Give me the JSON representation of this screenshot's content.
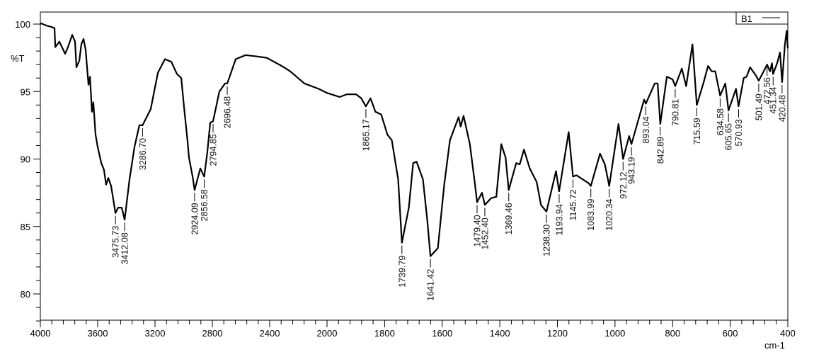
{
  "chart_data": {
    "type": "line",
    "title": "",
    "xlabel": "cm-1",
    "ylabel": "%T",
    "xlim": [
      4000,
      400
    ],
    "x_scale_break": 2000,
    "ylim": [
      78,
      100.9
    ],
    "x_ticks": [
      "4000",
      "3600",
      "3200",
      "2800",
      "2400",
      "2000",
      "1800",
      "1600",
      "1400",
      "1200",
      "1000",
      "800",
      "600",
      "400"
    ],
    "y_ticks": [
      "100",
      "95",
      "90",
      "85",
      "80"
    ],
    "grid": false,
    "legend": {
      "position": "top-right",
      "entries": [
        "B1"
      ]
    },
    "series": [
      {
        "name": "B1",
        "color": "#000000",
        "points": [
          [
            4000,
            100.0
          ],
          [
            3995,
            100.05
          ],
          [
            3960,
            99.9
          ],
          [
            3926,
            99.8
          ],
          [
            3901,
            99.7
          ],
          [
            3896,
            98.3
          ],
          [
            3867,
            98.7
          ],
          [
            3827,
            97.8
          ],
          [
            3807,
            98.3
          ],
          [
            3778,
            99.2
          ],
          [
            3758,
            98.7
          ],
          [
            3748,
            96.8
          ],
          [
            3728,
            97.3
          ],
          [
            3714,
            98.5
          ],
          [
            3699,
            98.9
          ],
          [
            3684,
            98.1
          ],
          [
            3664,
            95.5
          ],
          [
            3654,
            96.1
          ],
          [
            3640,
            93.5
          ],
          [
            3630,
            94.2
          ],
          [
            3615,
            91.8
          ],
          [
            3600,
            90.9
          ],
          [
            3575,
            89.7
          ],
          [
            3556,
            89.2
          ],
          [
            3541,
            88.1
          ],
          [
            3526,
            88.6
          ],
          [
            3506,
            88.0
          ],
          [
            3476,
            86.0
          ],
          [
            3457,
            86.4
          ],
          [
            3432,
            86.4
          ],
          [
            3412,
            85.5
          ],
          [
            3378,
            88.5
          ],
          [
            3343,
            90.9
          ],
          [
            3309,
            92.5
          ],
          [
            3287,
            92.5
          ],
          [
            3254,
            93.2
          ],
          [
            3230,
            93.7
          ],
          [
            3180,
            96.4
          ],
          [
            3131,
            97.4
          ],
          [
            3086,
            97.2
          ],
          [
            3047,
            96.3
          ],
          [
            3017,
            96.0
          ],
          [
            2998,
            93.9
          ],
          [
            2973,
            91.3
          ],
          [
            2963,
            90.1
          ],
          [
            2938,
            88.7
          ],
          [
            2924,
            87.7
          ],
          [
            2884,
            89.3
          ],
          [
            2857,
            88.7
          ],
          [
            2835,
            90.5
          ],
          [
            2815,
            92.7
          ],
          [
            2795,
            92.8
          ],
          [
            2751,
            95.0
          ],
          [
            2711,
            95.6
          ],
          [
            2696,
            95.6
          ],
          [
            2637,
            97.4
          ],
          [
            2568,
            97.7
          ],
          [
            2489,
            97.6
          ],
          [
            2420,
            97.5
          ],
          [
            2316,
            96.9
          ],
          [
            2257,
            96.5
          ],
          [
            2158,
            95.6
          ],
          [
            2059,
            95.2
          ],
          [
            2000,
            94.9
          ],
          [
            1956,
            94.6
          ],
          [
            1931,
            94.8
          ],
          [
            1899,
            94.8
          ],
          [
            1881,
            94.5
          ],
          [
            1865,
            93.9
          ],
          [
            1849,
            94.5
          ],
          [
            1832,
            93.5
          ],
          [
            1812,
            93.3
          ],
          [
            1790,
            91.8
          ],
          [
            1775,
            91.4
          ],
          [
            1753,
            88.5
          ],
          [
            1740,
            83.8
          ],
          [
            1716,
            86.4
          ],
          [
            1701,
            89.7
          ],
          [
            1689,
            89.8
          ],
          [
            1667,
            88.5
          ],
          [
            1652,
            85.5
          ],
          [
            1641,
            82.8
          ],
          [
            1615,
            83.4
          ],
          [
            1593,
            88.1
          ],
          [
            1573,
            91.4
          ],
          [
            1543,
            93.1
          ],
          [
            1536,
            92.4
          ],
          [
            1526,
            93.2
          ],
          [
            1504,
            91.1
          ],
          [
            1486,
            88.1
          ],
          [
            1479,
            86.8
          ],
          [
            1462,
            87.5
          ],
          [
            1452,
            86.6
          ],
          [
            1430,
            87.1
          ],
          [
            1412,
            87.2
          ],
          [
            1395,
            91.1
          ],
          [
            1380,
            90.1
          ],
          [
            1369,
            87.7
          ],
          [
            1343,
            89.7
          ],
          [
            1331,
            89.6
          ],
          [
            1316,
            90.7
          ],
          [
            1296,
            89.3
          ],
          [
            1272,
            88.3
          ],
          [
            1257,
            86.6
          ],
          [
            1238,
            86.1
          ],
          [
            1205,
            89.1
          ],
          [
            1194,
            87.6
          ],
          [
            1161,
            92.0
          ],
          [
            1146,
            88.7
          ],
          [
            1134,
            88.8
          ],
          [
            1091,
            88.2
          ],
          [
            1084,
            88.0
          ],
          [
            1052,
            90.4
          ],
          [
            1035,
            89.6
          ],
          [
            1020,
            88.0
          ],
          [
            988,
            92.6
          ],
          [
            972,
            90.0
          ],
          [
            951,
            91.7
          ],
          [
            943,
            91.1
          ],
          [
            899,
            94.4
          ],
          [
            893,
            94.1
          ],
          [
            862,
            95.6
          ],
          [
            852,
            95.6
          ],
          [
            843,
            92.6
          ],
          [
            820,
            96.1
          ],
          [
            800,
            95.9
          ],
          [
            791,
            95.4
          ],
          [
            768,
            96.7
          ],
          [
            753,
            95.4
          ],
          [
            731,
            98.5
          ],
          [
            716,
            94.0
          ],
          [
            692,
            95.7
          ],
          [
            677,
            96.9
          ],
          [
            664,
            96.5
          ],
          [
            652,
            96.5
          ],
          [
            635,
            94.7
          ],
          [
            617,
            95.6
          ],
          [
            606,
            93.6
          ],
          [
            580,
            95.2
          ],
          [
            571,
            93.9
          ],
          [
            553,
            96.0
          ],
          [
            543,
            96.1
          ],
          [
            531,
            96.8
          ],
          [
            511,
            96.2
          ],
          [
            501,
            95.8
          ],
          [
            479,
            96.7
          ],
          [
            472,
            97.0
          ],
          [
            462,
            96.5
          ],
          [
            455,
            97.1
          ],
          [
            451,
            96.3
          ],
          [
            437,
            97.1
          ],
          [
            427,
            97.9
          ],
          [
            420,
            95.7
          ],
          [
            410,
            98.5
          ],
          [
            404,
            99.5
          ],
          [
            400,
            98.2
          ]
        ]
      }
    ],
    "peak_labels": [
      {
        "label": "3475.73",
        "x": 3476,
        "y": 86.0
      },
      {
        "label": "3412.08",
        "x": 3412,
        "y": 85.5
      },
      {
        "label": "3286.70",
        "x": 3287,
        "y": 92.5
      },
      {
        "label": "2924.09",
        "x": 2924,
        "y": 87.7
      },
      {
        "label": "2856.58",
        "x": 2857,
        "y": 88.7
      },
      {
        "label": "2794.85",
        "x": 2795,
        "y": 92.8
      },
      {
        "label": "2696.48",
        "x": 2696,
        "y": 95.6
      },
      {
        "label": "1865.17",
        "x": 1865,
        "y": 93.9
      },
      {
        "label": "1739.79",
        "x": 1740,
        "y": 83.8
      },
      {
        "label": "1641.42",
        "x": 1641,
        "y": 82.8
      },
      {
        "label": "1479.40",
        "x": 1479,
        "y": 86.8
      },
      {
        "label": "1452.40",
        "x": 1452,
        "y": 86.6
      },
      {
        "label": "1369.46",
        "x": 1369,
        "y": 87.7
      },
      {
        "label": "1238.30",
        "x": 1238,
        "y": 86.1
      },
      {
        "label": "1193.94",
        "x": 1194,
        "y": 87.6
      },
      {
        "label": "1145.72",
        "x": 1146,
        "y": 88.7
      },
      {
        "label": "1083.99",
        "x": 1084,
        "y": 88.0
      },
      {
        "label": "1020.34",
        "x": 1020,
        "y": 88.0
      },
      {
        "label": "972.12",
        "x": 972,
        "y": 90.0
      },
      {
        "label": "943.19",
        "x": 943,
        "y": 91.1
      },
      {
        "label": "893.04",
        "x": 893,
        "y": 94.1
      },
      {
        "label": "842.89",
        "x": 843,
        "y": 92.6
      },
      {
        "label": "790.81",
        "x": 791,
        "y": 95.4
      },
      {
        "label": "715.59",
        "x": 716,
        "y": 94.0
      },
      {
        "label": "634.58",
        "x": 635,
        "y": 94.7
      },
      {
        "label": "605.65",
        "x": 606,
        "y": 93.6
      },
      {
        "label": "570.93",
        "x": 571,
        "y": 93.9
      },
      {
        "label": "501.49",
        "x": 501,
        "y": 95.8
      },
      {
        "label": "472.56",
        "x": 472,
        "y": 97.0
      },
      {
        "label": "451.34",
        "x": 451,
        "y": 96.3
      },
      {
        "label": "420.48",
        "x": 420,
        "y": 95.7
      }
    ]
  }
}
